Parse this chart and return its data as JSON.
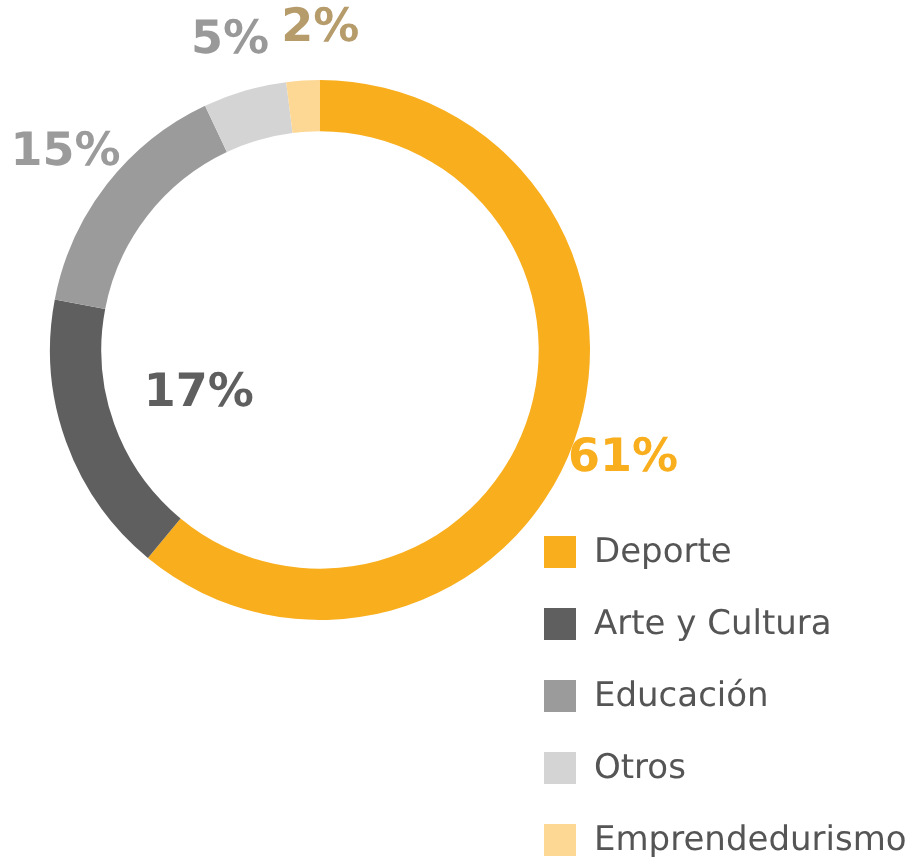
{
  "chart_data": {
    "type": "donut",
    "categories": [
      "Deporte",
      "Arte y Cultura",
      "Educación",
      "Otros",
      "Emprendedurismo"
    ],
    "values": [
      61,
      17,
      15,
      5,
      2
    ],
    "colors": [
      "#f9ae1d",
      "#5f5f5f",
      "#9b9b9b",
      "#d4d4d4",
      "#fdd794"
    ],
    "value_labels": [
      "61%",
      "17%",
      "15%",
      "5%",
      "2%"
    ],
    "legend": "bottom right"
  }
}
